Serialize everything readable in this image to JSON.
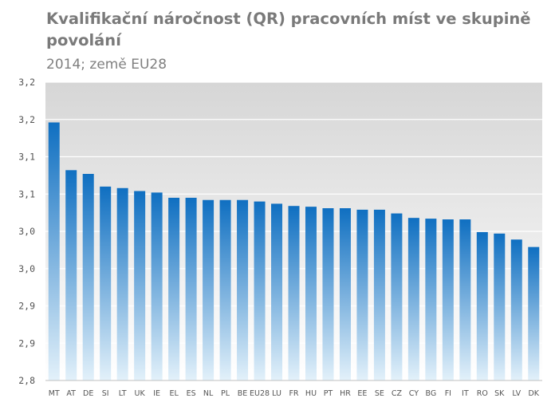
{
  "header": {
    "title": "Kvalifikační náročnost (QR) pracovních míst ve skupině povolání",
    "subtitle": "2014; země EU28"
  },
  "chart_data": {
    "type": "bar",
    "title": "Kvalifikační náročnost (QR) pracovních míst ve skupině povolání",
    "subtitle": "2014; země EU28",
    "xlabel": "",
    "ylabel": "",
    "ylim": [
      2.8,
      3.2
    ],
    "y_ticks": [
      2.8,
      2.85,
      2.9,
      2.95,
      3.0,
      3.05,
      3.1,
      3.15,
      3.2
    ],
    "y_tick_labels": [
      "2,8",
      "2,9",
      "2,9",
      "3,0",
      "3,0",
      "3,1",
      "3,1",
      "3,2",
      "3,2"
    ],
    "grid": true,
    "legend": "none",
    "categories": [
      "MT",
      "AT",
      "DE",
      "SI",
      "LT",
      "UK",
      "IE",
      "EL",
      "ES",
      "NL",
      "PL",
      "BE",
      "EU28",
      "LU",
      "FR",
      "HU",
      "PT",
      "HR",
      "EE",
      "SE",
      "CZ",
      "CY",
      "BG",
      "FI",
      "IT",
      "RO",
      "SK",
      "LV",
      "DK"
    ],
    "values": [
      3.146,
      3.082,
      3.077,
      3.06,
      3.058,
      3.054,
      3.052,
      3.045,
      3.045,
      3.042,
      3.042,
      3.042,
      3.04,
      3.037,
      3.034,
      3.033,
      3.031,
      3.031,
      3.029,
      3.029,
      3.024,
      3.018,
      3.017,
      3.016,
      3.016,
      2.999,
      2.997,
      2.989,
      2.979
    ],
    "colors": {
      "bar_top": "#0f6fc1",
      "bar_bottom": "#e3f1fa",
      "plot_top": "#d6d6d6",
      "plot_bottom": "#ffffff",
      "grid": "#ffffff",
      "axis": "#bfbfbf"
    }
  }
}
